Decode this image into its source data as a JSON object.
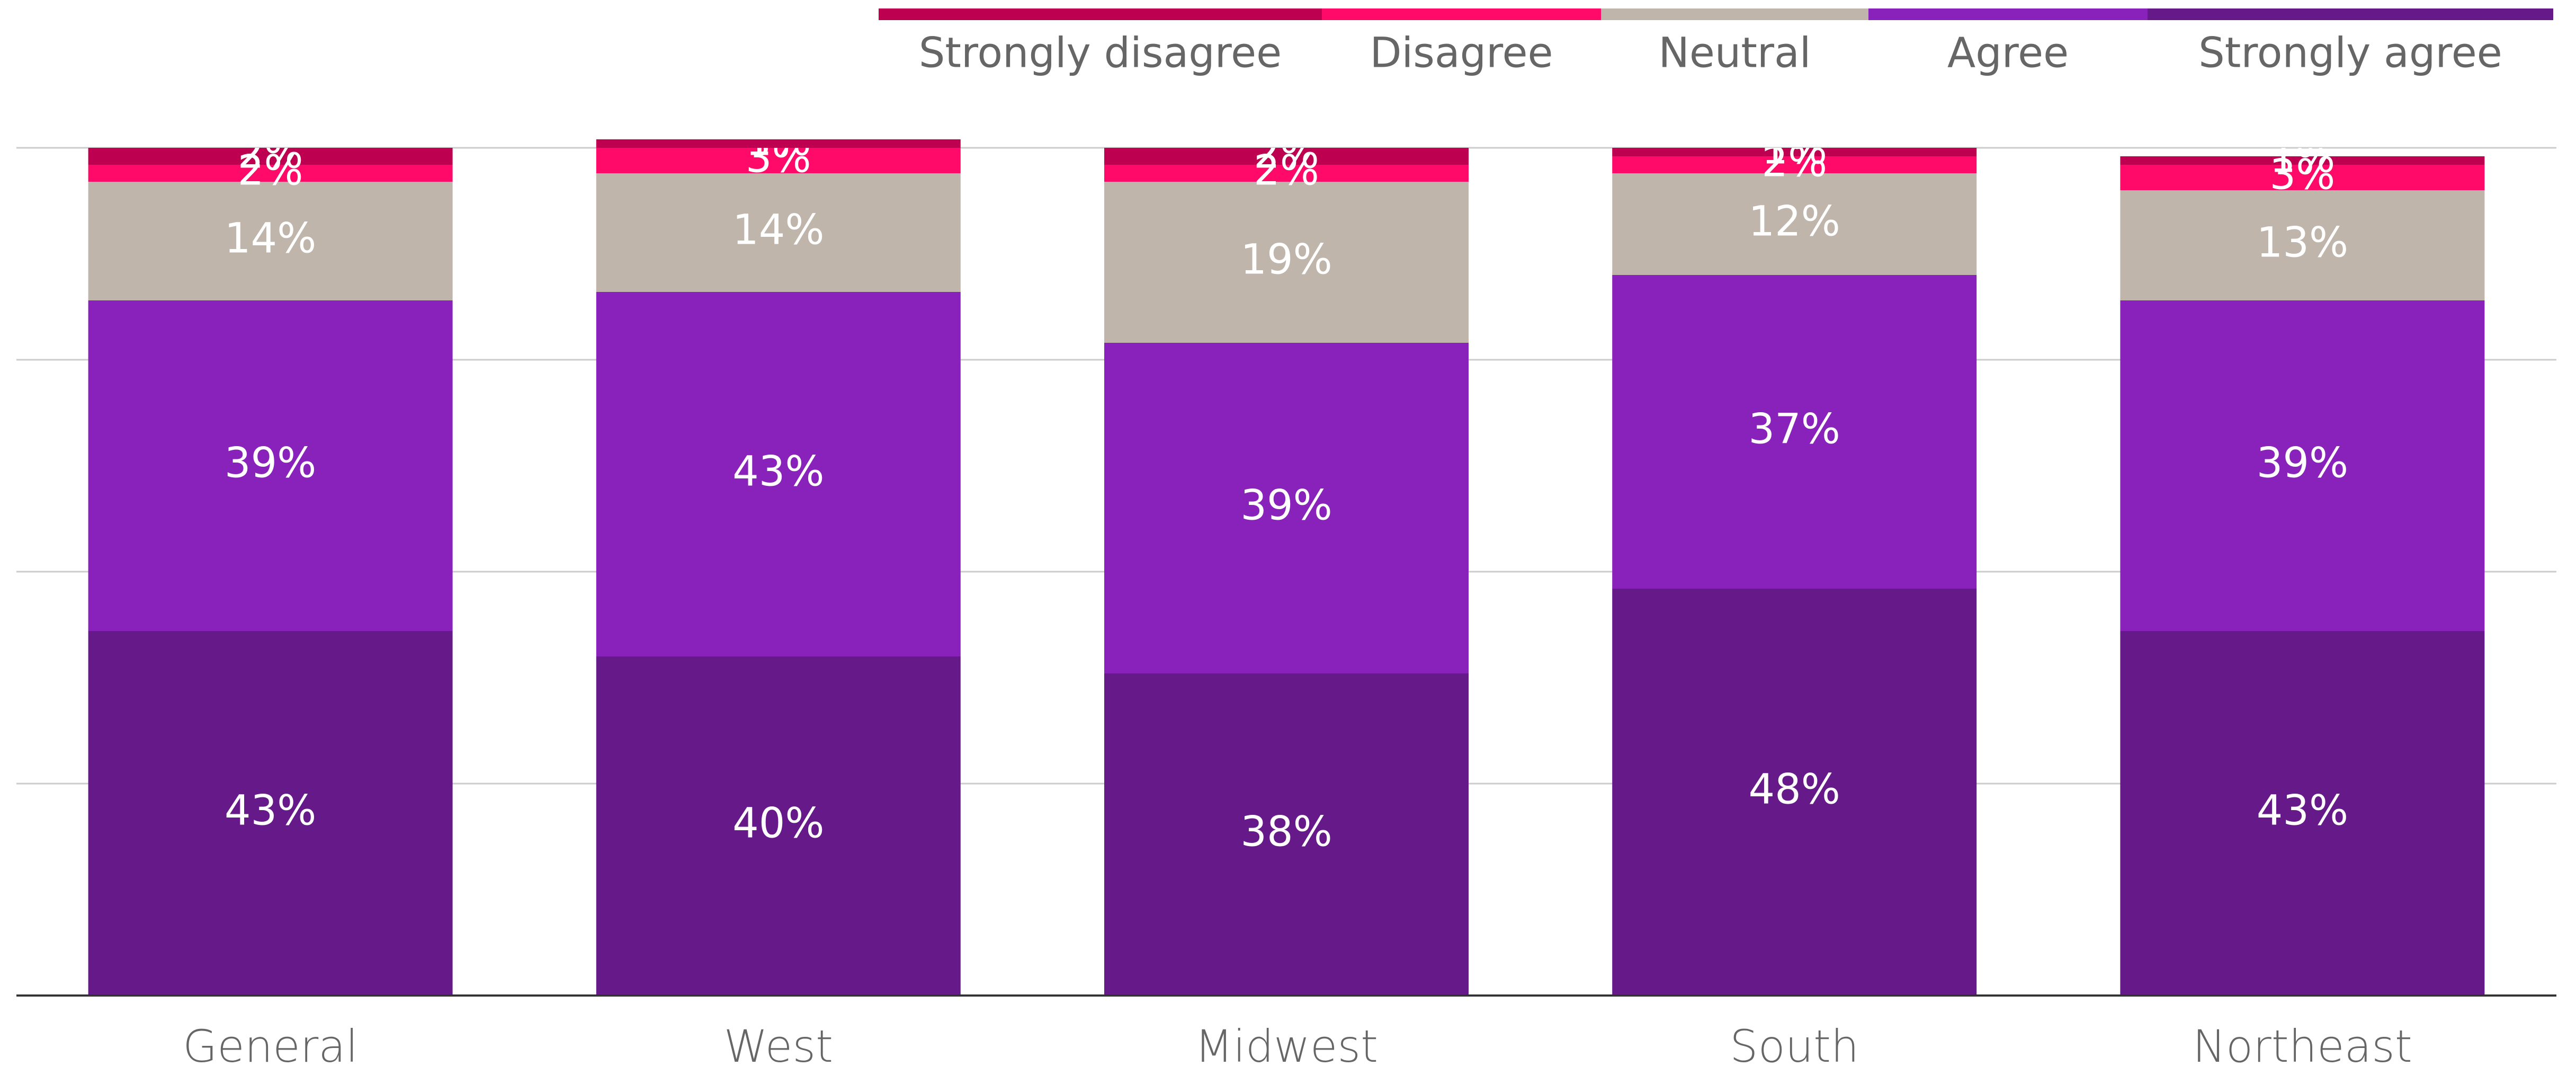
{
  "chart_data": {
    "type": "stacked_bar",
    "categories": [
      "General",
      "West",
      "Midwest",
      "South",
      "Northeast"
    ],
    "series": [
      {
        "name": "Strongly disagree",
        "color": "#bd004f",
        "values": [
          2,
          1,
          2,
          1,
          1
        ],
        "value_labels": [
          "2%",
          "1%",
          "2%",
          "1%",
          "1%"
        ]
      },
      {
        "name": "Disagree",
        "color": "#ff0a68",
        "values": [
          2,
          3,
          2,
          2,
          3
        ],
        "value_labels": [
          "2%",
          "3%",
          "2%",
          "2%",
          "3%"
        ]
      },
      {
        "name": "Neutral",
        "color": "#bfb5ab",
        "values": [
          14,
          14,
          19,
          12,
          13
        ],
        "value_labels": [
          "14%",
          "14%",
          "19%",
          "12%",
          "13%"
        ]
      },
      {
        "name": "Agree",
        "color": "#8922bb",
        "values": [
          39,
          43,
          39,
          37,
          39
        ],
        "value_labels": [
          "39%",
          "43%",
          "39%",
          "37%",
          "39%"
        ]
      },
      {
        "name": "Strongly agree",
        "color": "#661a8a",
        "values": [
          43,
          40,
          38,
          48,
          43
        ],
        "value_labels": [
          "43%",
          "40%",
          "38%",
          "48%",
          "43%"
        ]
      }
    ],
    "ylim": [
      0,
      100
    ],
    "yticks": [
      0,
      25,
      50,
      75,
      100
    ],
    "grid": true,
    "legend": "top"
  }
}
